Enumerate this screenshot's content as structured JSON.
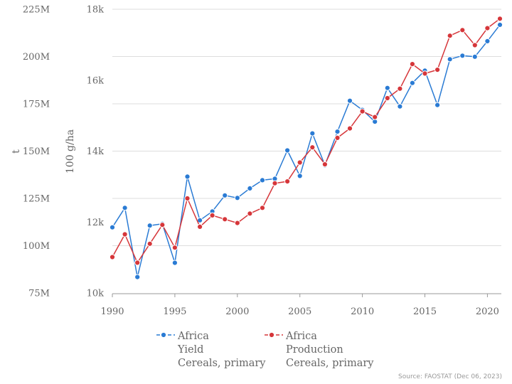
{
  "chart_data": {
    "type": "line",
    "x": [
      1990,
      1991,
      1992,
      1993,
      1994,
      1995,
      1996,
      1997,
      1998,
      1999,
      2000,
      2001,
      2002,
      2003,
      2004,
      2005,
      2006,
      2007,
      2008,
      2009,
      2010,
      2011,
      2012,
      2013,
      2014,
      2015,
      2016,
      2017,
      2018,
      2019,
      2020,
      2021
    ],
    "xlim": [
      1990,
      2021
    ],
    "xticks": [
      1990,
      1995,
      2000,
      2005,
      2010,
      2015,
      2020
    ],
    "xtick_labels": [
      "1990",
      "1995",
      "2000",
      "2005",
      "2010",
      "2015",
      "2020"
    ],
    "left_axis": {
      "label": "t",
      "ylim": [
        75000000,
        225000000
      ],
      "ticks": [
        75000000,
        100000000,
        125000000,
        150000000,
        175000000,
        200000000,
        225000000
      ],
      "tick_labels": [
        "75M",
        "100M",
        "125M",
        "150M",
        "175M",
        "200M",
        "225M"
      ]
    },
    "right_axis": {
      "label": "100 g/ha",
      "ylim": [
        10000,
        18000
      ],
      "ticks": [
        10000,
        12000,
        14000,
        16000,
        18000
      ],
      "tick_labels": [
        "10k",
        "12k",
        "14k",
        "16k",
        "18k"
      ]
    },
    "grid": true,
    "legend_position": "bottom",
    "series": [
      {
        "name_lines": [
          "Africa",
          "Yield",
          "Cereals, primary"
        ],
        "axis": "right",
        "color": "#2a7bd4",
        "values": [
          11850,
          12400,
          10450,
          11900,
          11950,
          10850,
          13280,
          12050,
          12300,
          12750,
          12680,
          12950,
          13180,
          13220,
          14020,
          13300,
          14500,
          13600,
          14550,
          15420,
          15160,
          14830,
          15780,
          15260,
          15920,
          16270,
          15300,
          16590,
          16690,
          16660,
          17100,
          17560
        ]
      },
      {
        "name_lines": [
          "Africa",
          "Production",
          "Cereals, primary"
        ],
        "axis": "left",
        "color": "#d6363a",
        "values": [
          94000,
          106000,
          91000,
          101000,
          111000,
          99000,
          125000,
          110000,
          116000,
          114000,
          112000,
          117000,
          120000,
          133000,
          134000,
          144000,
          152000,
          143000,
          157000,
          162000,
          171000,
          168000,
          178000,
          183000,
          196000,
          191000,
          193000,
          211000,
          214000,
          206000,
          215000,
          220000
        ],
        "values_unit": "thousand t"
      }
    ],
    "source": "Source: FAOSTAT (Dec 06, 2023)"
  }
}
